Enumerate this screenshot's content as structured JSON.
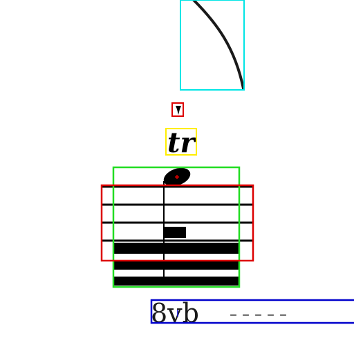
{
  "score": {
    "trill_label": "tr",
    "ottava_label": "8vb",
    "ottava_dashes": "– – – – –"
  },
  "annotation_colors": {
    "slur": "#00e5e5",
    "accidental": "#e00000",
    "trill": "#ffee00",
    "notehead_group": "#22dd22",
    "staff_region": "#dd0000",
    "ottava": "#0000cc"
  }
}
